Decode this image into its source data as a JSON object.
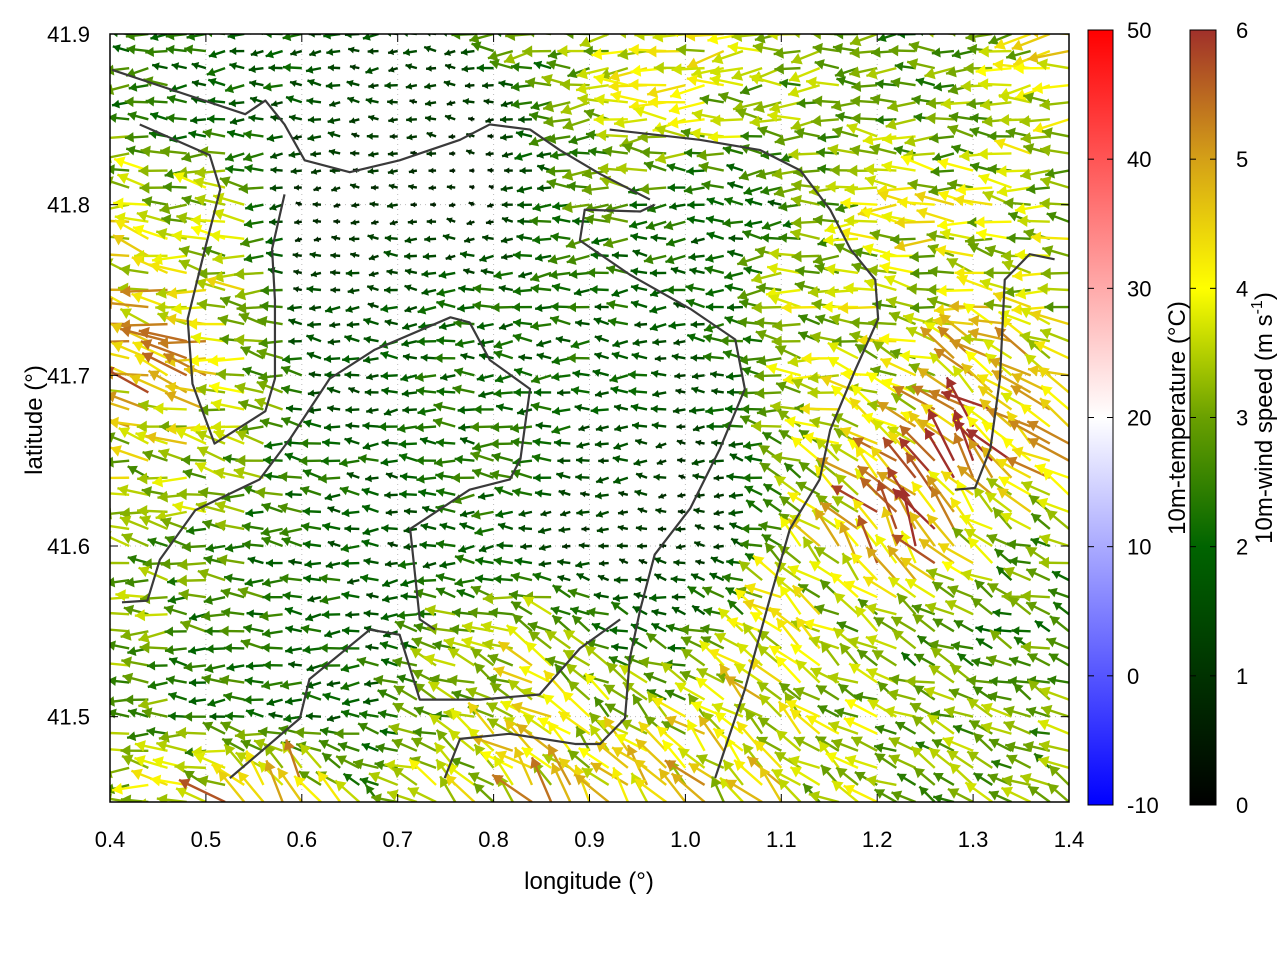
{
  "chart_data": {
    "type": "vector-field",
    "xlabel": "longitude (°)",
    "ylabel": "latitude (°)",
    "xlim": [
      0.4,
      1.4
    ],
    "ylim": [
      41.45,
      41.9
    ],
    "xticks": [
      "0.4",
      "0.5",
      "0.6",
      "0.7",
      "0.8",
      "0.9",
      "1.0",
      "1.1",
      "1.2",
      "1.3",
      "1.4"
    ],
    "yticks": [
      "41.5",
      "41.6",
      "41.7",
      "41.8",
      "41.9"
    ],
    "grid": true,
    "wind_speed": {
      "lon": [
        0.4,
        0.45,
        0.5,
        0.55,
        0.6,
        0.65,
        0.7,
        0.75,
        0.8,
        0.85,
        0.9,
        0.95,
        1.0,
        1.05,
        1.1,
        1.15,
        1.2,
        1.25,
        1.3,
        1.35,
        1.4
      ],
      "lat": [
        41.9,
        41.85,
        41.8,
        41.75,
        41.7,
        41.65,
        41.6,
        41.55,
        41.5,
        41.45
      ],
      "speed": [
        [
          2.5,
          2.2,
          2,
          2,
          1.8,
          1.5,
          1.5,
          1.5,
          2.5,
          3,
          3,
          3.5,
          4,
          3.5,
          3,
          3,
          2.8,
          2.5,
          2.8,
          3.5,
          4
        ],
        [
          2.5,
          2.5,
          2.2,
          2,
          1.5,
          1.2,
          1,
          1,
          0.8,
          2,
          3,
          3.5,
          3.5,
          3.5,
          3,
          3,
          3,
          3,
          3,
          3.5,
          3.5
        ],
        [
          3.5,
          3.8,
          3.5,
          2.8,
          0.8,
          0.8,
          1,
          0.8,
          0.6,
          1.8,
          2.5,
          2.5,
          2.2,
          2,
          2,
          3,
          3.5,
          3.8,
          3.5,
          3.5,
          3.5
        ],
        [
          4.5,
          4.3,
          4,
          3.5,
          1.2,
          1.5,
          1.5,
          1.8,
          2,
          2,
          2,
          2,
          1.8,
          2,
          3,
          3.5,
          3.5,
          3.5,
          3.8,
          3.5,
          3.5
        ],
        [
          4.5,
          5,
          4.5,
          3.5,
          2,
          1.5,
          1.8,
          2,
          2,
          2,
          2,
          1.8,
          1.5,
          2,
          3,
          3.5,
          3.5,
          3.8,
          4.5,
          5,
          4
        ],
        [
          3.8,
          3.5,
          3.5,
          3,
          2.5,
          2,
          1.8,
          2,
          2.5,
          2,
          1.5,
          1.5,
          1,
          1.5,
          2.5,
          3.5,
          4.5,
          5,
          5.5,
          5,
          4.5
        ],
        [
          3,
          3,
          2.8,
          2.5,
          2,
          1.8,
          1.5,
          1.8,
          2,
          1.2,
          1,
          1,
          1,
          1.2,
          3,
          4,
          5,
          5.5,
          4,
          3,
          3
        ],
        [
          3,
          3,
          2.5,
          2.5,
          2,
          2,
          1.8,
          3,
          3.5,
          3.5,
          3,
          2,
          2,
          3,
          4,
          3.5,
          3,
          2.5,
          2.5,
          2.5,
          2.5
        ],
        [
          3,
          3,
          2.5,
          2,
          2,
          2,
          2.5,
          3,
          3.5,
          4,
          3.5,
          3.5,
          3.5,
          4,
          4,
          3.5,
          3.5,
          3,
          3,
          3,
          3
        ],
        [
          3,
          3.5,
          4,
          5.5,
          5,
          3,
          3,
          3.5,
          4,
          4.5,
          4,
          4,
          4.5,
          4,
          4,
          3.5,
          3.5,
          3,
          3,
          3,
          3
        ]
      ],
      "direction_deg": [
        [
          185,
          185,
          185,
          180,
          180,
          180,
          180,
          180,
          180,
          185,
          185,
          185,
          185,
          185,
          185,
          185,
          185,
          185,
          185,
          185,
          185
        ],
        [
          180,
          180,
          180,
          180,
          180,
          180,
          180,
          180,
          180,
          180,
          180,
          180,
          180,
          180,
          180,
          180,
          180,
          180,
          180,
          180,
          180
        ],
        [
          172,
          172,
          175,
          178,
          180,
          180,
          180,
          180,
          180,
          180,
          180,
          180,
          180,
          180,
          180,
          180,
          175,
          175,
          175,
          175,
          175
        ],
        [
          168,
          168,
          170,
          172,
          180,
          180,
          180,
          180,
          180,
          180,
          180,
          180,
          180,
          180,
          178,
          172,
          170,
          170,
          170,
          172,
          172
        ],
        [
          165,
          162,
          165,
          168,
          175,
          178,
          180,
          180,
          180,
          180,
          180,
          180,
          180,
          178,
          172,
          168,
          160,
          155,
          150,
          150,
          155
        ],
        [
          168,
          168,
          168,
          170,
          175,
          178,
          180,
          180,
          175,
          180,
          180,
          180,
          180,
          175,
          165,
          150,
          140,
          135,
          130,
          140,
          150
        ],
        [
          175,
          175,
          175,
          175,
          178,
          180,
          180,
          180,
          180,
          180,
          180,
          180,
          180,
          170,
          150,
          135,
          125,
          120,
          140,
          155,
          160
        ],
        [
          178,
          178,
          178,
          178,
          180,
          180,
          180,
          165,
          155,
          150,
          150,
          160,
          165,
          150,
          140,
          145,
          150,
          160,
          160,
          160,
          160
        ],
        [
          178,
          178,
          178,
          178,
          180,
          180,
          170,
          160,
          150,
          145,
          140,
          140,
          140,
          140,
          140,
          145,
          150,
          155,
          155,
          155,
          155
        ],
        [
          175,
          170,
          160,
          120,
          115,
          140,
          150,
          140,
          135,
          130,
          130,
          130,
          130,
          135,
          140,
          145,
          150,
          150,
          150,
          150,
          150
        ]
      ]
    },
    "contours": [
      [
        [
          0.4125,
          41.567
        ],
        [
          0.439,
          41.568
        ],
        [
          0.452,
          41.592
        ],
        [
          0.489,
          41.621
        ],
        [
          0.556,
          41.639
        ],
        [
          0.588,
          41.663
        ],
        [
          0.629,
          41.698
        ],
        [
          0.676,
          41.715
        ],
        [
          0.755,
          41.734
        ],
        [
          0.775,
          41.731
        ],
        [
          0.796,
          41.709
        ],
        [
          0.838,
          41.692
        ],
        [
          0.828,
          41.651
        ],
        [
          0.817,
          41.639
        ],
        [
          0.775,
          41.633
        ],
        [
          0.713,
          41.61
        ],
        [
          0.723,
          41.557
        ],
        [
          0.739,
          41.551
        ]
      ],
      [
        [
          0.431,
          41.847
        ],
        [
          0.504,
          41.829
        ],
        [
          0.515,
          41.809
        ],
        [
          0.499,
          41.774
        ],
        [
          0.481,
          41.733
        ],
        [
          0.486,
          41.695
        ],
        [
          0.509,
          41.66
        ],
        [
          0.562,
          41.679
        ],
        [
          0.572,
          41.698
        ],
        [
          0.572,
          41.744
        ],
        [
          0.569,
          41.774
        ],
        [
          0.582,
          41.806
        ]
      ],
      [
        [
          0.402,
          41.879
        ],
        [
          0.541,
          41.853
        ],
        [
          0.562,
          41.861
        ],
        [
          0.582,
          41.847
        ],
        [
          0.603,
          41.826
        ],
        [
          0.65,
          41.819
        ],
        [
          0.702,
          41.826
        ],
        [
          0.765,
          41.838
        ],
        [
          0.796,
          41.847
        ],
        [
          0.838,
          41.844
        ],
        [
          0.869,
          41.832
        ],
        [
          0.911,
          41.818
        ],
        [
          0.963,
          41.803
        ]
      ],
      [
        [
          0.921,
          41.844
        ],
        [
          1.015,
          41.838
        ],
        [
          1.078,
          41.832
        ],
        [
          1.12,
          41.82
        ],
        [
          1.151,
          41.797
        ],
        [
          1.172,
          41.774
        ],
        [
          1.198,
          41.756
        ],
        [
          1.201,
          41.733
        ],
        [
          1.177,
          41.703
        ],
        [
          1.151,
          41.668
        ],
        [
          1.14,
          41.639
        ],
        [
          1.109,
          41.61
        ],
        [
          1.088,
          41.569
        ],
        [
          1.062,
          41.516
        ],
        [
          1.031,
          41.464
        ]
      ],
      [
        [
          0.968,
          41.8
        ],
        [
          0.953,
          41.796
        ],
        [
          0.895,
          41.797
        ],
        [
          0.89,
          41.779
        ],
        [
          0.942,
          41.759
        ],
        [
          1.005,
          41.739
        ],
        [
          1.052,
          41.721
        ],
        [
          1.062,
          41.692
        ],
        [
          1.036,
          41.657
        ],
        [
          1.005,
          41.622
        ],
        [
          0.968,
          41.595
        ],
        [
          0.953,
          41.563
        ],
        [
          0.942,
          41.534
        ],
        [
          0.937,
          41.499
        ],
        [
          0.911,
          41.484
        ],
        [
          0.885,
          41.484
        ],
        [
          0.817,
          41.49
        ],
        [
          0.765,
          41.487
        ],
        [
          0.749,
          41.464
        ]
      ],
      [
        [
          0.525,
          41.464
        ],
        [
          0.598,
          41.499
        ],
        [
          0.608,
          41.522
        ],
        [
          0.671,
          41.551
        ],
        [
          0.702,
          41.548
        ],
        [
          0.723,
          41.51
        ],
        [
          0.786,
          41.51
        ],
        [
          0.848,
          41.513
        ],
        [
          0.89,
          41.54
        ],
        [
          0.932,
          41.557
        ]
      ],
      [
        [
          1.385,
          41.768
        ],
        [
          1.359,
          41.771
        ],
        [
          1.333,
          41.756
        ],
        [
          1.328,
          41.698
        ],
        [
          1.318,
          41.657
        ],
        [
          1.302,
          41.634
        ],
        [
          1.281,
          41.633
        ]
      ]
    ],
    "contour_color": "#3a3a3a",
    "colorbars": [
      {
        "label": "10m-temperature (°C)",
        "range": [
          -10,
          50
        ],
        "ticks": [
          "-10",
          "0",
          "10",
          "20",
          "30",
          "40",
          "50"
        ],
        "stops": [
          [
            "-10",
            "#0000ff"
          ],
          [
            "20",
            "#ffffff"
          ],
          [
            "50",
            "#ff0000"
          ]
        ]
      },
      {
        "label_main": "10m-wind speed (m s",
        "label_sup": "-1",
        "label_end": ")",
        "range": [
          0,
          6
        ],
        "ticks": [
          "0",
          "1",
          "2",
          "3",
          "4",
          "5",
          "6"
        ],
        "stops": [
          [
            "0",
            "#000000"
          ],
          [
            "2",
            "#006400"
          ],
          [
            "3",
            "#6aa000"
          ],
          [
            "4",
            "#ffff00"
          ],
          [
            "5",
            "#d4a017"
          ],
          [
            "6",
            "#a0302a"
          ]
        ]
      }
    ]
  }
}
